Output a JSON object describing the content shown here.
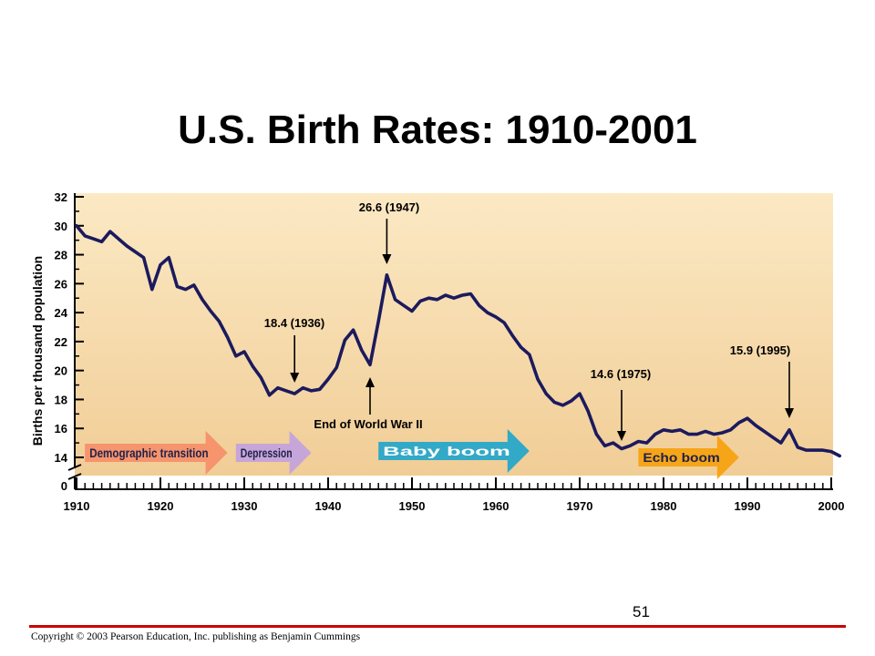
{
  "slide": {
    "title": "U.S. Birth Rates: 1910-2001",
    "page_number": "51",
    "copyright": "Copyright © 2003 Pearson Education, Inc. publishing as Benjamin Cummings"
  },
  "chart_data": {
    "type": "line",
    "title": "U.S. Birth Rates: 1910-2001",
    "xlabel": "",
    "ylabel": "Births per thousand population",
    "xlim": [
      1910,
      2000
    ],
    "ylim": [
      0,
      32
    ],
    "axis_break": [
      0,
      14
    ],
    "x_ticks": [
      1910,
      1920,
      1930,
      1940,
      1950,
      1960,
      1970,
      1980,
      1990,
      2000
    ],
    "y_ticks": [
      0,
      14,
      16,
      18,
      20,
      22,
      24,
      26,
      28,
      30,
      32
    ],
    "colors": {
      "line": "#1c1a5e",
      "background_top": "#fbe9c4",
      "background_bottom": "#f1cd96",
      "arrow_demographic": "#f4906a",
      "arrow_depression": "#c3a3dc",
      "arrow_babyboom": "#27a6c8",
      "arrow_echoboom": "#f6a212"
    },
    "series": [
      {
        "x": [
          1910,
          1911,
          1912,
          1913,
          1914,
          1915,
          1916,
          1917,
          1918,
          1919,
          1920,
          1921,
          1922,
          1923,
          1924,
          1925,
          1926,
          1927,
          1928,
          1929,
          1930,
          1931,
          1932,
          1933,
          1934,
          1935,
          1936,
          1937,
          1938,
          1939,
          1940,
          1941,
          1942,
          1943,
          1944,
          1945,
          1946,
          1947,
          1948,
          1949,
          1950,
          1951,
          1952,
          1953,
          1954,
          1955,
          1956,
          1957,
          1958,
          1959,
          1960,
          1961,
          1962,
          1963,
          1964,
          1965,
          1966,
          1967,
          1968,
          1969,
          1970,
          1971,
          1972,
          1973,
          1974,
          1975,
          1976,
          1977,
          1978,
          1979,
          1980,
          1981,
          1982,
          1983,
          1984,
          1985,
          1986,
          1987,
          1988,
          1989,
          1990,
          1991,
          1992,
          1993,
          1994,
          1995,
          1996,
          1997,
          1998,
          1999,
          2000,
          2001
        ],
        "values": [
          30.0,
          29.3,
          29.1,
          28.9,
          29.6,
          29.1,
          28.6,
          28.2,
          27.8,
          25.6,
          27.3,
          27.8,
          25.8,
          25.6,
          25.9,
          24.9,
          24.1,
          23.4,
          22.3,
          21.0,
          21.3,
          20.3,
          19.5,
          18.3,
          18.8,
          18.6,
          18.4,
          18.8,
          18.6,
          18.7,
          19.4,
          20.2,
          22.1,
          22.8,
          21.4,
          20.4,
          23.4,
          26.6,
          24.9,
          24.5,
          24.1,
          24.8,
          25.0,
          24.9,
          25.2,
          25.0,
          25.2,
          25.3,
          24.5,
          24.0,
          23.7,
          23.3,
          22.4,
          21.6,
          21.1,
          19.4,
          18.4,
          17.8,
          17.6,
          17.9,
          18.4,
          17.2,
          15.6,
          14.8,
          15.0,
          14.6,
          14.8,
          15.1,
          15.0,
          15.6,
          15.9,
          15.8,
          15.9,
          15.6,
          15.6,
          15.8,
          15.6,
          15.7,
          15.9,
          16.4,
          16.7,
          16.2,
          15.8,
          15.4,
          15.0,
          15.9,
          14.7,
          14.5,
          14.5,
          14.5,
          14.4,
          14.1
        ]
      }
    ],
    "annotations": [
      {
        "text": "26.6 (1947)",
        "x": 1947,
        "y": 26.6
      },
      {
        "text": "18.4 (1936)",
        "x": 1936,
        "y": 18.4
      },
      {
        "text": "End of World War II",
        "x": 1945,
        "y": 20.4
      },
      {
        "text": "14.6 (1975)",
        "x": 1975,
        "y": 14.6
      },
      {
        "text": "15.9 (1995)",
        "x": 1995,
        "y": 15.9
      }
    ],
    "periods": [
      {
        "label": "Demographic transition",
        "x0": 1911,
        "x1": 1928
      },
      {
        "label": "Depression",
        "x0": 1929,
        "x1": 1938
      },
      {
        "label": "Baby boom",
        "x0": 1946,
        "x1": 1964
      },
      {
        "label": "Echo boom",
        "x0": 1977,
        "x1": 1989
      }
    ]
  }
}
